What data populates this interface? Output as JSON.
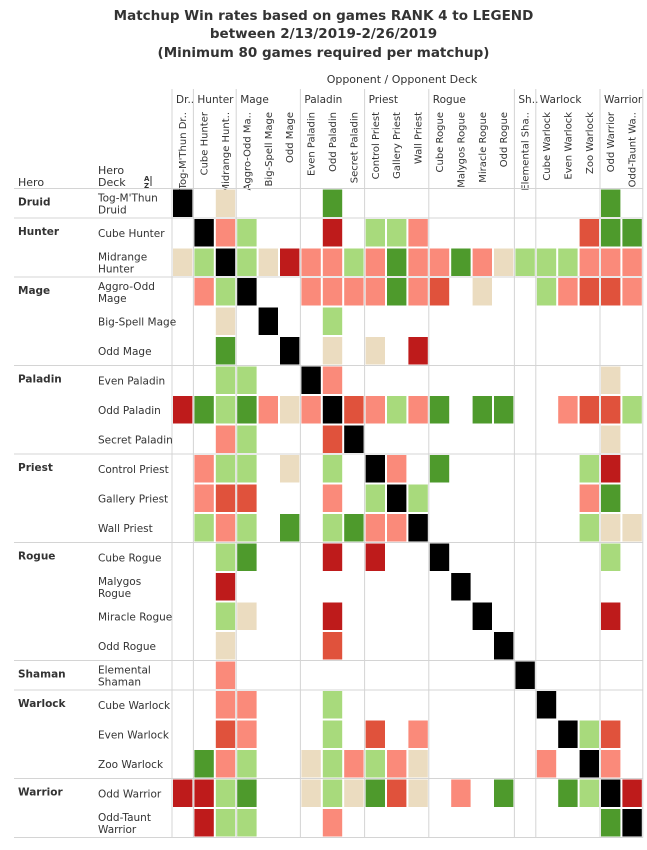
{
  "title_lines": [
    "Matchup Win rates based on games RANK 4 to LEGEND",
    "between 2/13/2019-2/26/2019",
    "(Minimum 80 games required per matchup)"
  ],
  "header": {
    "opponent_label": "Opponent  /  Opponent Deck",
    "hero_label": "Hero",
    "hero_label2": "Hero",
    "deck_label": "Deck",
    "sort_icon": "sort-icon"
  },
  "colors": {
    "mirror": "#000000",
    "dark_green": "#4e9a2c",
    "light_green": "#a8da7c",
    "neutral": "#ebdcc0",
    "light_red": "#fa8a7a",
    "medium_red": "#e0523c",
    "dark_red": "#be1b1b",
    "grid": "#d4d4d4",
    "text": "#333333"
  },
  "chart_data": {
    "type": "heatmap",
    "opponent_classes": [
      {
        "label": "Dr..",
        "span": 1
      },
      {
        "label": "Hunter",
        "span": 2
      },
      {
        "label": "Mage",
        "span": 3
      },
      {
        "label": "Paladin",
        "span": 3
      },
      {
        "label": "Priest",
        "span": 3
      },
      {
        "label": "Rogue",
        "span": 4
      },
      {
        "label": "Sh..",
        "span": 1
      },
      {
        "label": "Warlock",
        "span": 3
      },
      {
        "label": "Warrior",
        "span": 2
      }
    ],
    "opponent_decks": [
      "Tog-M'Thun Dr..",
      "Cube Hunter",
      "Midrange Hunt..",
      "Aggro-Odd Ma..",
      "Big-Spell Mage",
      "Odd Mage",
      "Even Paladin",
      "Odd Paladin",
      "Secret Paladin",
      "Control Priest",
      "Gallery Priest",
      "Wall Priest",
      "Cube Rogue",
      "Malygos Rogue",
      "Miracle Rogue",
      "Odd Rogue",
      "Elemental Sha..",
      "Cube Warlock",
      "Even Warlock",
      "Zoo Warlock",
      "Odd Warrior",
      "Odd-Taunt Wa.."
    ],
    "hero_classes": [
      {
        "label": "Druid",
        "span": 1
      },
      {
        "label": "Hunter",
        "span": 2
      },
      {
        "label": "Mage",
        "span": 3
      },
      {
        "label": "Paladin",
        "span": 3
      },
      {
        "label": "Priest",
        "span": 3
      },
      {
        "label": "Rogue",
        "span": 4
      },
      {
        "label": "Shaman",
        "span": 1
      },
      {
        "label": "Warlock",
        "span": 3
      },
      {
        "label": "Warrior",
        "span": 2
      }
    ],
    "hero_decks": [
      [
        "Tog-M'Thun",
        "Druid"
      ],
      [
        "Cube Hunter"
      ],
      [
        "Midrange",
        "Hunter"
      ],
      [
        "Aggro-Odd",
        "Mage"
      ],
      [
        "Big-Spell Mage"
      ],
      [
        "Odd Mage"
      ],
      [
        "Even Paladin"
      ],
      [
        "Odd Paladin"
      ],
      [
        "Secret Paladin"
      ],
      [
        "Control Priest"
      ],
      [
        "Gallery Priest"
      ],
      [
        "Wall Priest"
      ],
      [
        "Cube Rogue"
      ],
      [
        "Malygos",
        "Rogue"
      ],
      [
        "Miracle Rogue"
      ],
      [
        "Odd Rogue"
      ],
      [
        "Elemental",
        "Shaman"
      ],
      [
        "Cube Warlock"
      ],
      [
        "Even Warlock"
      ],
      [
        "Zoo Warlock"
      ],
      [
        "Odd Warrior"
      ],
      [
        "Odd-Taunt",
        "Warrior"
      ]
    ],
    "legend_codes": {
      "K": "mirror",
      "G": "dark_green",
      "g": "light_green",
      "n": "neutral",
      "r": "light_red",
      "m": "medium_red",
      "R": "dark_red",
      ".": "no data"
    },
    "matrix": [
      "K.n....G............G.",
      ".Krg...R.ggr.......mGG",
      "ngKgnRrrgrGrrGrngggrrr",
      ".rgK..rrrrGrm.n..grmmr",
      "..n.K..g..............",
      "..G..K.n.n.R..........",
      "..gg..Kr............n.",
      "RGgGrnrKmrgrG.GG..rmmg",
      "..rg...mK...........n.",
      ".rgg.n.g.Kr.G......gR.",
      ".rmm...r.gKg.......rG.",
      ".grg.G.gGrrK.......gnn",
      "..gG...R.R..K.......g.",
      "..R..........K........",
      "..gn...R......K.....R.",
      "..n....m.......K......",
      "..r.............K.....",
      "..rr...g.........K....",
      "..mr...g.m.r......Kgm.",
      ".Grg..ngrgrn.....r.Kr.",
      "RRgG..ngnGmn.r.G..GgKR",
      ".Rgg...r............GK"
    ]
  }
}
